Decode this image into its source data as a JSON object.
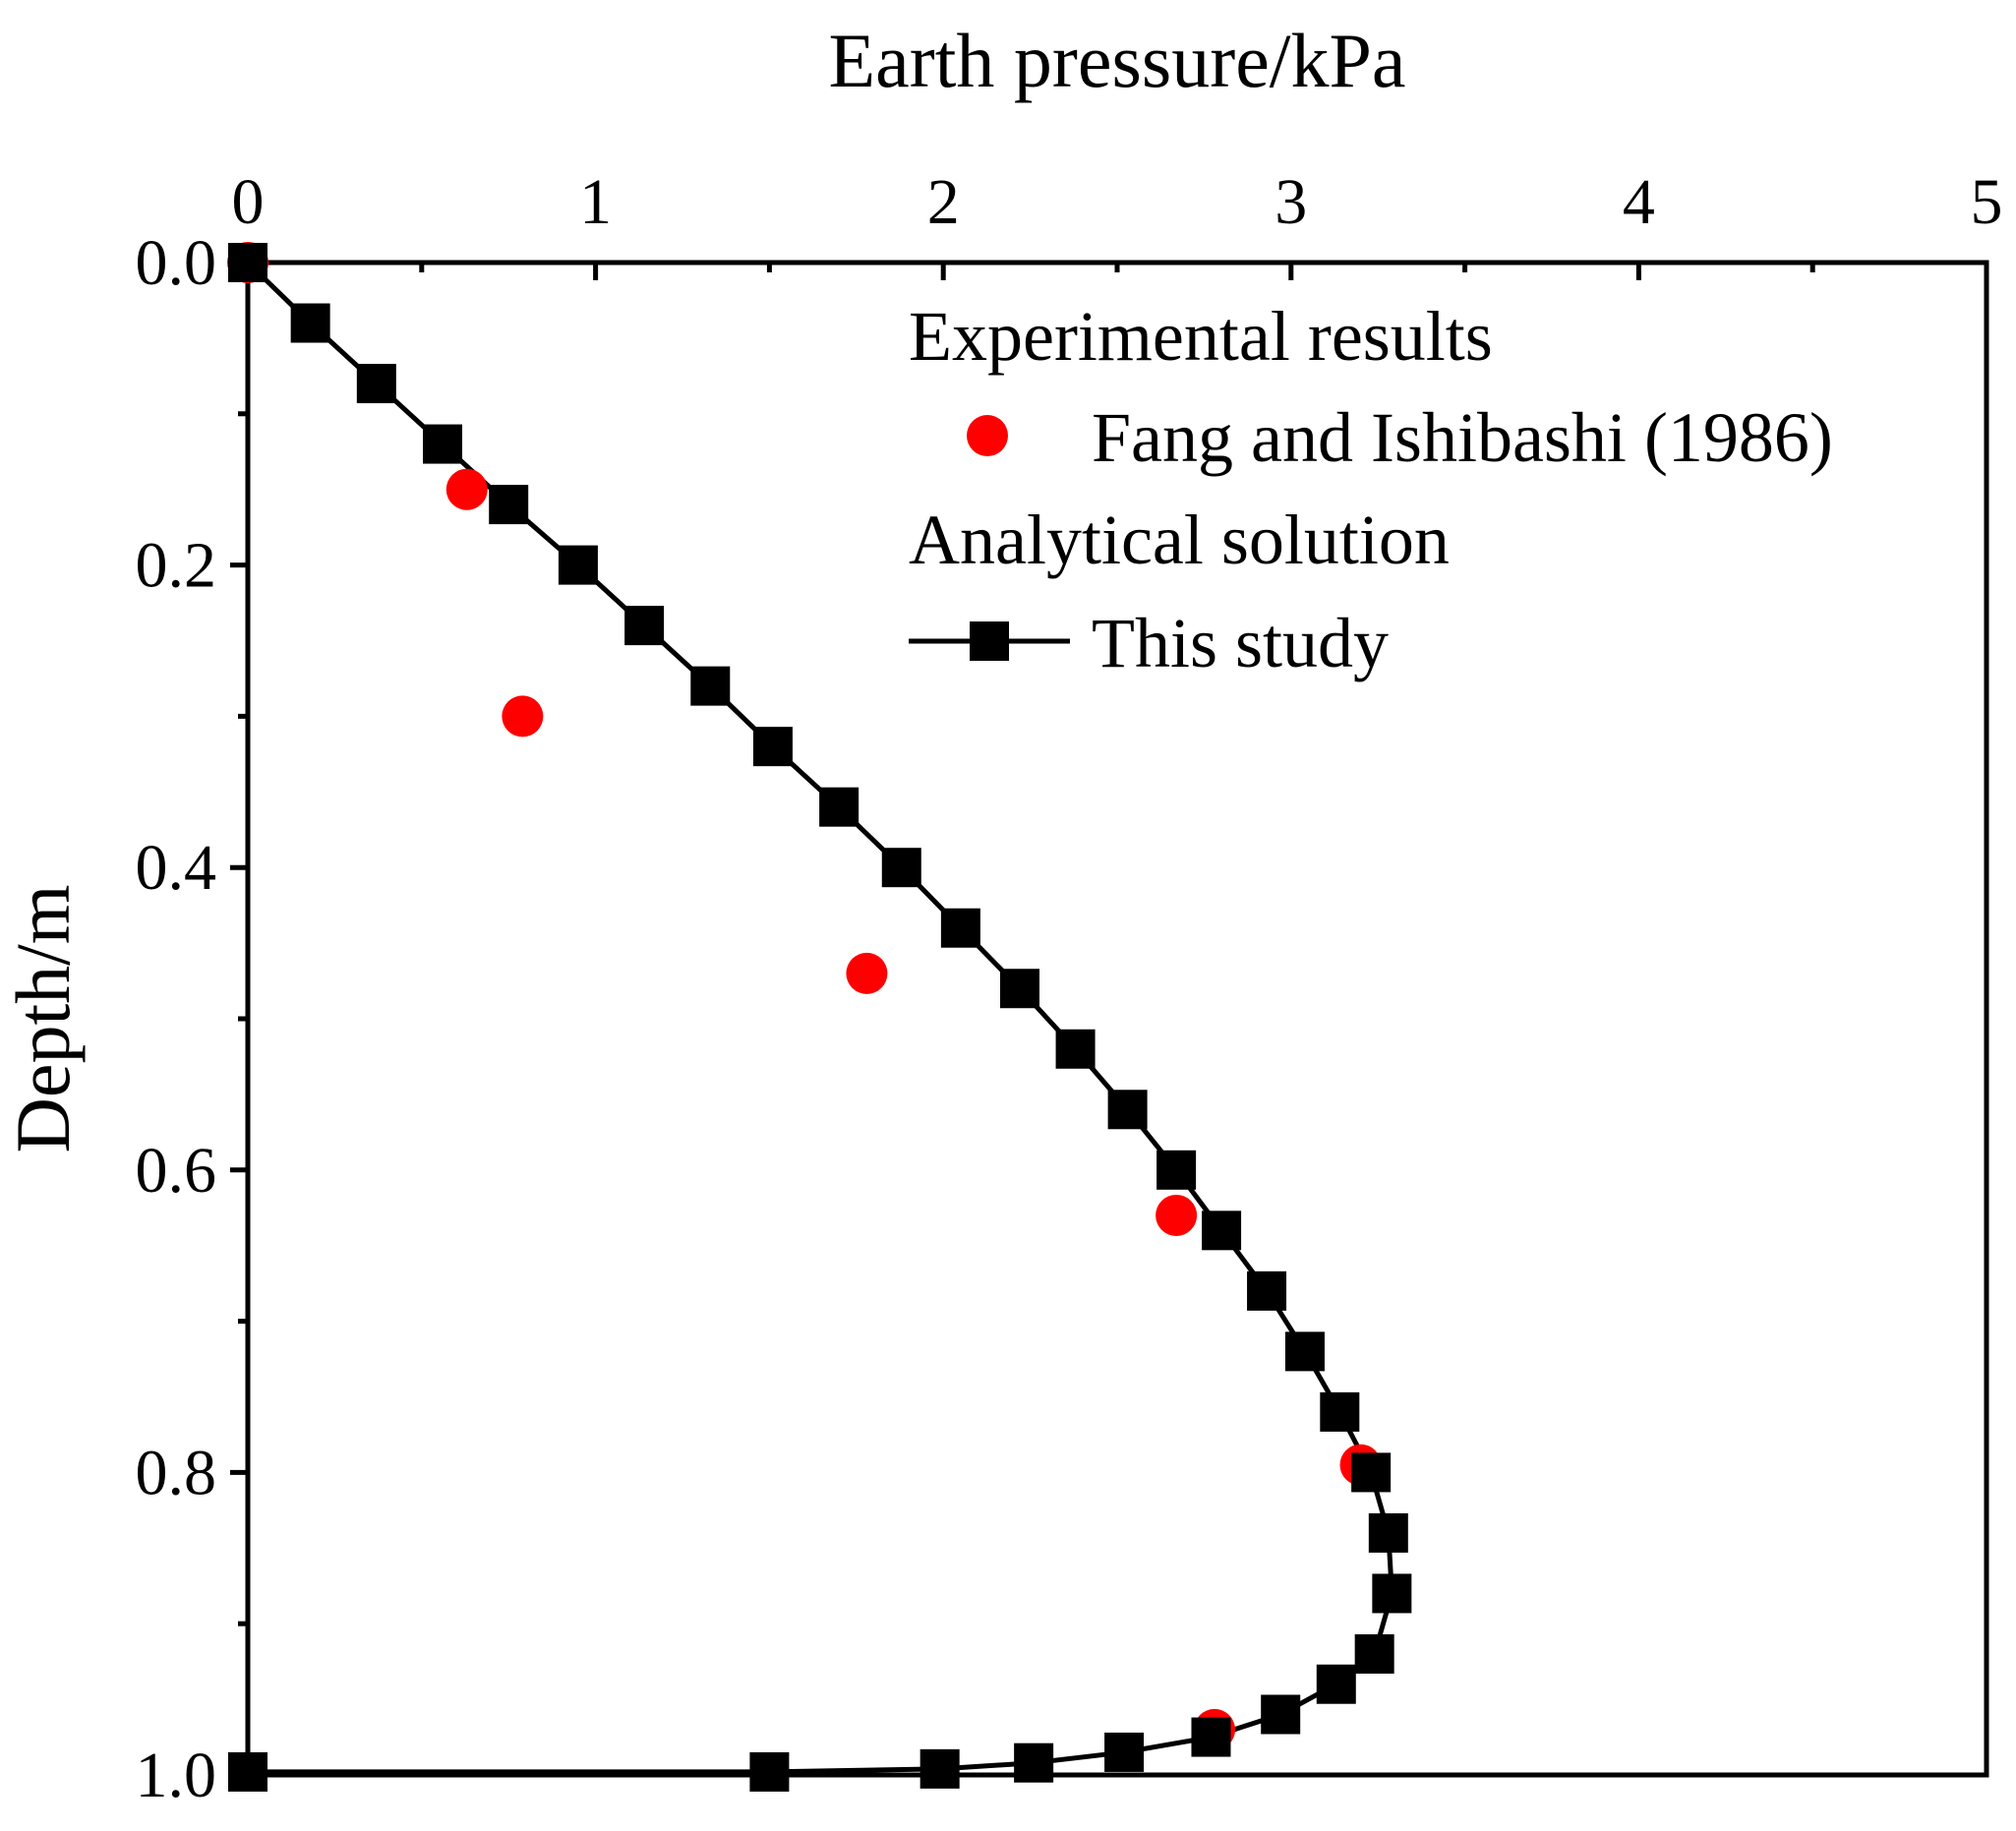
{
  "chart_data": {
    "type": "scatter",
    "title": "",
    "xlabel": "Earth pressure/kPa",
    "ylabel": "Depth/m",
    "xlim": [
      0,
      5
    ],
    "ylim": [
      0.0,
      1.0
    ],
    "y_inverted": true,
    "x_axis_position": "top",
    "xticks": [
      0,
      1,
      2,
      3,
      4,
      5
    ],
    "xtick_labels": [
      "0",
      "1",
      "2",
      "3",
      "4",
      "5"
    ],
    "yticks": [
      0.0,
      0.2,
      0.4,
      0.6,
      0.8,
      1.0
    ],
    "ytick_labels": [
      "0.0",
      "0.2",
      "0.4",
      "0.6",
      "0.8",
      "1.0"
    ],
    "grid": false,
    "legend": {
      "placement": "top-right",
      "group_experimental": "Experimental results",
      "group_analytical": "Analytical solution"
    },
    "series": [
      {
        "name": "Fang and Ishibashi (1986)",
        "group": "Experimental results",
        "marker": "circle",
        "line": false,
        "color": "#ff0000",
        "x": [
          0.0,
          0.63,
          0.79,
          1.78,
          2.67,
          2.78,
          3.2
        ],
        "y": [
          0.0,
          0.15,
          0.3,
          0.47,
          0.63,
          0.97,
          0.795
        ]
      },
      {
        "name": "This study",
        "group": "Analytical solution",
        "marker": "square",
        "line": true,
        "color": "#000000",
        "x": [
          0.0,
          0.18,
          0.37,
          0.56,
          0.75,
          0.95,
          1.14,
          1.33,
          1.51,
          1.7,
          1.88,
          2.05,
          2.22,
          2.38,
          2.53,
          2.67,
          2.8,
          2.93,
          3.04,
          3.14,
          3.23,
          3.28,
          3.29,
          3.24,
          3.13,
          2.97,
          2.77,
          2.52,
          2.26,
          1.99,
          1.5,
          0.0
        ],
        "y": [
          0.0,
          0.04,
          0.08,
          0.12,
          0.16,
          0.2,
          0.24,
          0.28,
          0.32,
          0.36,
          0.4,
          0.44,
          0.48,
          0.52,
          0.56,
          0.6,
          0.64,
          0.68,
          0.72,
          0.76,
          0.8,
          0.84,
          0.88,
          0.92,
          0.94,
          0.96,
          0.975,
          0.985,
          0.992,
          0.996,
          0.998,
          0.998
        ]
      }
    ]
  }
}
